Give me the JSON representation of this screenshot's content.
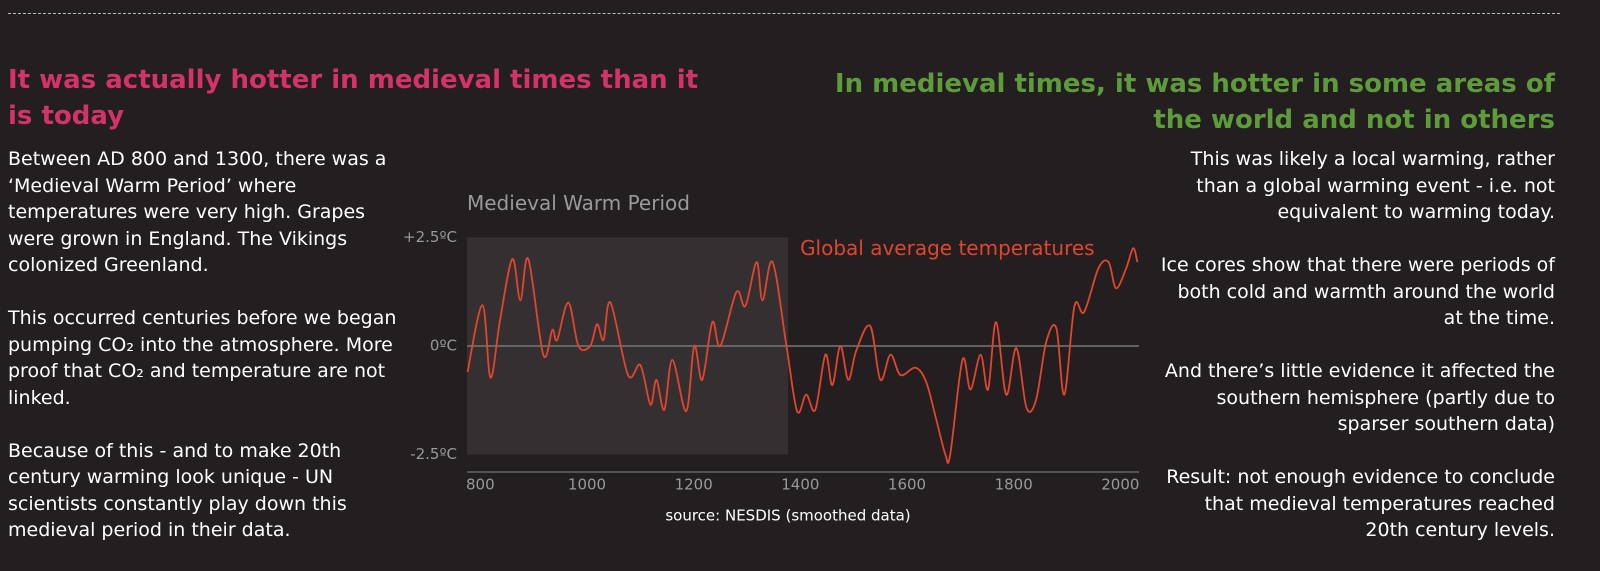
{
  "left": {
    "heading": "It was actually hotter in medieval times than it is today",
    "paragraphs": [
      "Between AD 800 and 1300, there was a ‘Medieval Warm Period’ where temperatures were very high. Grapes were grown in England. The Vikings colonized Greenland.",
      "This occurred centuries before we began pumping CO₂ into the atmosphere. More proof that CO₂ and temperature are not linked.",
      "Because of this - and to make 20th century warming look unique - UN scientists constantly play down this medieval period in their data."
    ]
  },
  "right": {
    "heading": "In medieval times, it was hotter in some areas of the world and not in others",
    "paragraphs": [
      "This was likely a local warming, rather than a global warming event - i.e. not equivalent to warming today.",
      "Ice cores show that there were periods of both cold and warmth around the world at the time.",
      "And there’s little evidence it affected the southern hemisphere (partly due to sparser southern data)",
      "Result: not enough evidence to conclude that medieval temperatures reached 20th century levels."
    ]
  },
  "chart_data": {
    "type": "line",
    "source": "source: NESDIS (smoothed data)",
    "highlight": {
      "label": "Medieval Warm Period",
      "start": 775,
      "end": 1377
    },
    "x": [
      776,
      804,
      819,
      837,
      860,
      875,
      890,
      918,
      935,
      944,
      965,
      984,
      1006,
      1019,
      1031,
      1044,
      1077,
      1100,
      1119,
      1130,
      1145,
      1160,
      1186,
      1201,
      1216,
      1235,
      1250,
      1280,
      1297,
      1318,
      1329,
      1348,
      1374,
      1394,
      1411,
      1428,
      1447,
      1460,
      1475,
      1490,
      1505,
      1531,
      1550,
      1569,
      1588,
      1616,
      1636,
      1655,
      1672,
      1681,
      1704,
      1719,
      1738,
      1752,
      1767,
      1786,
      1805,
      1824,
      1842,
      1861,
      1880,
      1895,
      1914,
      1932,
      1959,
      1978,
      1992,
      2011,
      2024,
      2032
    ],
    "series": [
      {
        "name": "Global average temperatures",
        "color": "#e0462d",
        "values": [
          -0.6,
          0.94,
          -0.73,
          0.6,
          2.0,
          1.05,
          2.0,
          -0.2,
          0.37,
          0.14,
          1.0,
          0,
          0,
          0.5,
          0.14,
          1.0,
          -0.67,
          -0.44,
          -1.35,
          -0.78,
          -1.47,
          -0.32,
          -1.5,
          0,
          -0.78,
          0.55,
          0,
          1.24,
          0.92,
          1.93,
          1.05,
          1.93,
          0,
          -1.5,
          -1.12,
          -1.47,
          -0.2,
          -0.9,
          0,
          -0.78,
          -0.1,
          0.46,
          -0.78,
          -0.2,
          -0.67,
          -0.5,
          -0.83,
          -1.7,
          -2.5,
          -2.5,
          -0.32,
          -1.0,
          -0.2,
          -1.0,
          0.55,
          -1.12,
          -0.05,
          -1.42,
          -1.24,
          0.09,
          0.41,
          -1.12,
          0.92,
          0.78,
          1.79,
          1.93,
          1.33,
          1.79,
          2.25,
          1.93
        ]
      }
    ],
    "xlim": [
      775,
      2035
    ],
    "ylim": [
      -2.9,
      2.6
    ],
    "xticks": [
      800,
      1000,
      1200,
      1400,
      1600,
      1800,
      2000
    ],
    "yticks": [
      {
        "value": 2.5,
        "label": "+2.5ºC"
      },
      {
        "value": 0,
        "label": "0ºC"
      },
      {
        "value": -2.5,
        "label": "-2.5ºC"
      }
    ],
    "grid": false
  }
}
